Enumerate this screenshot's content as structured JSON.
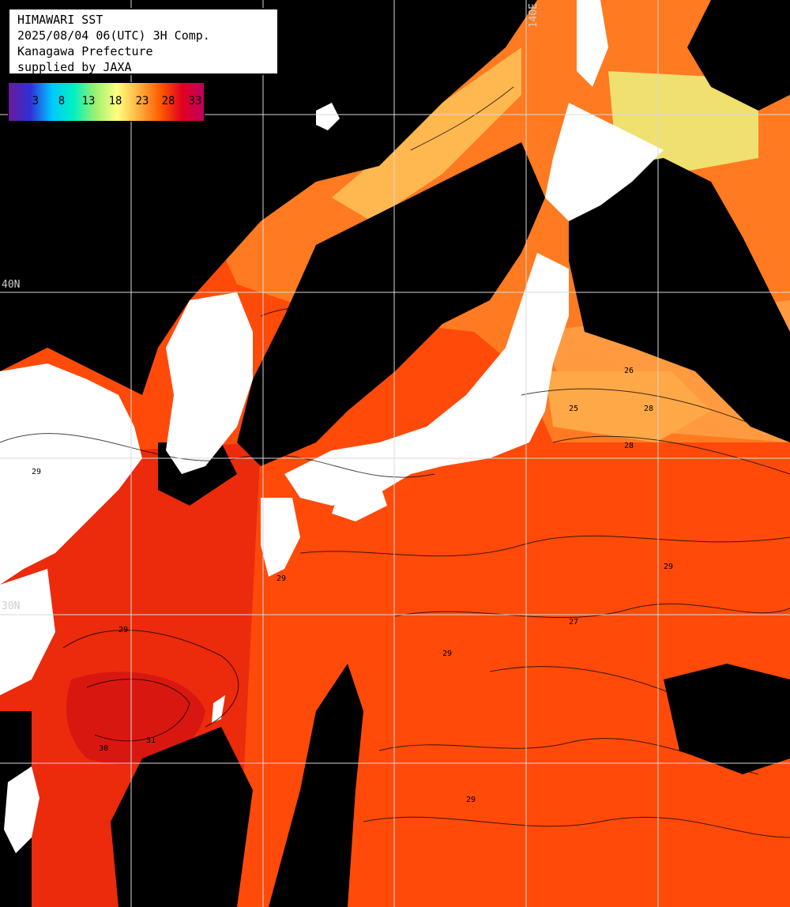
{
  "header": {
    "line1": "HIMAWARI SST",
    "line2": "2025/08/04 06(UTC) 3H Comp.",
    "line3": "Kanagawa Prefecture",
    "line4": "supplied by JAXA"
  },
  "legend": {
    "labels": [
      "3",
      "8",
      "13",
      "18",
      "23",
      "28",
      "33"
    ],
    "colors": [
      "#6a1b9a",
      "#2f2fd8",
      "#00c8ff",
      "#00f0c0",
      "#9cf070",
      "#ffff80",
      "#ffb040",
      "#ff5a00",
      "#e00020",
      "#c00060"
    ]
  },
  "grid_labels": {
    "lon_140": "140E",
    "lat_40": "40N",
    "lat_30": "30N"
  },
  "colors": {
    "land": "#ffffff",
    "cloud": "#000000",
    "sea_warm": "#ff4a0a",
    "sea_hot": "#e82010",
    "sea_mild": "#ff8a30",
    "sea_cool": "#ffc860",
    "sea_cold": "#f0f080",
    "grid": "#d8d8d8"
  },
  "contour_labels": [
    "25",
    "25",
    "26",
    "27",
    "28",
    "28",
    "29",
    "29",
    "29",
    "29",
    "29",
    "29",
    "30",
    "31"
  ]
}
